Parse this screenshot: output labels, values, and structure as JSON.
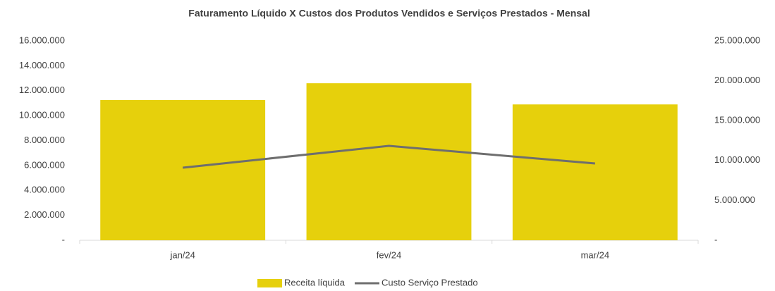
{
  "chart_data": {
    "type": "bar_line",
    "title": "Faturamento  Líquido X Custos dos Produtos Vendidos e Serviços Prestados - Mensal",
    "categories": [
      "jan/24",
      "fev/24",
      "mar/24"
    ],
    "series": [
      {
        "name": "Receita líquida",
        "type": "bar",
        "color": "#e6d00c",
        "values": [
          11250000,
          12600000,
          10900000
        ]
      },
      {
        "name": "Custo Serviço Prestado",
        "type": "line",
        "color": "#6e6e6e",
        "axis": "y2",
        "values": [
          9100000,
          11840000,
          9630000
        ]
      }
    ],
    "ylim": [
      0,
      16000000
    ],
    "yticks": [
      {
        "value": 0,
        "label": "-"
      },
      {
        "value": 2000000,
        "label": "2.000.000"
      },
      {
        "value": 4000000,
        "label": "4.000.000"
      },
      {
        "value": 6000000,
        "label": "6.000.000"
      },
      {
        "value": 8000000,
        "label": "8.000.000"
      },
      {
        "value": 10000000,
        "label": "10.000.000"
      },
      {
        "value": 12000000,
        "label": "12.000.000"
      },
      {
        "value": 14000000,
        "label": "14.000.000"
      },
      {
        "value": 16000000,
        "label": "16.000.000"
      }
    ],
    "y2lim": [
      0,
      25000000
    ],
    "y2ticks": [
      {
        "value": 0,
        "label": "-"
      },
      {
        "value": 5000000,
        "label": "5.000.000"
      },
      {
        "value": 10000000,
        "label": "10.000.000"
      },
      {
        "value": 15000000,
        "label": "15.000.000"
      },
      {
        "value": 20000000,
        "label": "20.000.000"
      },
      {
        "value": 25000000,
        "label": "25.000.000"
      }
    ],
    "legend": "bottom"
  }
}
